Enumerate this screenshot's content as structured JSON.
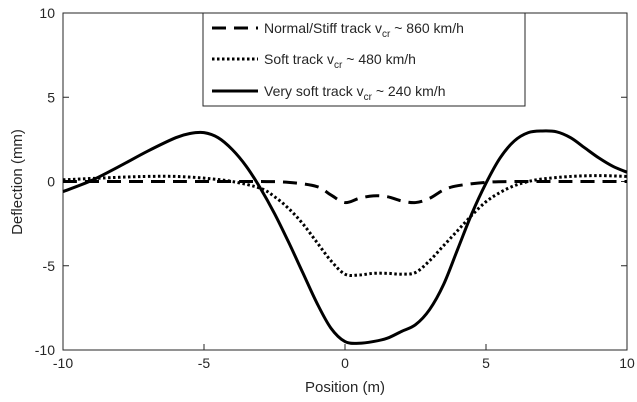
{
  "chart_data": {
    "type": "line",
    "title": "",
    "xlabel": "Position (m)",
    "ylabel": "Deflection (mm)",
    "xlim": [
      -10,
      10
    ],
    "ylim": [
      -10,
      10
    ],
    "xticks": [
      "-10",
      "-5",
      "0",
      "5",
      "10"
    ],
    "yticks": [
      "10",
      "5",
      "0",
      "-5",
      "-10"
    ],
    "xtick_values": [
      -10,
      -5,
      0,
      5,
      10
    ],
    "ytick_values": [
      10,
      5,
      0,
      -5,
      -10
    ],
    "grid": false,
    "legend_position": "top-center",
    "series": [
      {
        "legend_prefix": "Normal/Stiff track v",
        "legend_sub": "cr",
        "legend_suffix": " ~ 860 km/h",
        "style": "dashed",
        "color": "#000000",
        "x": [
          -10,
          -8,
          -6,
          -4,
          -3,
          -2,
          -1,
          -0.5,
          0,
          0.5,
          1,
          1.5,
          2,
          2.5,
          3,
          3.5,
          4,
          5,
          6,
          8,
          10
        ],
        "y": [
          0,
          0,
          0,
          0,
          0,
          -0.05,
          -0.3,
          -0.8,
          -1.25,
          -1.0,
          -0.85,
          -0.9,
          -1.15,
          -1.25,
          -1.0,
          -0.5,
          -0.25,
          -0.05,
          0,
          0,
          0
        ]
      },
      {
        "legend_prefix": "Soft track v",
        "legend_sub": "cr",
        "legend_suffix": " ~ 480 km/h",
        "style": "dotted",
        "color": "#000000",
        "x": [
          -10,
          -8,
          -7,
          -6,
          -5,
          -4,
          -3,
          -2.5,
          -2,
          -1.5,
          -1,
          -0.5,
          0,
          0.5,
          1,
          1.5,
          2,
          2.5,
          3,
          3.5,
          4,
          4.5,
          5,
          5.5,
          6,
          6.5,
          7,
          8,
          9,
          10
        ],
        "y": [
          0.1,
          0.25,
          0.3,
          0.3,
          0.2,
          0,
          -0.4,
          -0.9,
          -1.6,
          -2.5,
          -3.6,
          -4.7,
          -5.5,
          -5.55,
          -5.45,
          -5.45,
          -5.5,
          -5.4,
          -4.7,
          -3.8,
          -2.9,
          -2.0,
          -1.2,
          -0.65,
          -0.25,
          0,
          0.15,
          0.3,
          0.35,
          0.3
        ]
      },
      {
        "legend_prefix": "Very soft track v",
        "legend_sub": "cr",
        "legend_suffix": " ~ 240 km/h",
        "style": "solid",
        "color": "#000000",
        "x": [
          -10,
          -9,
          -8,
          -7,
          -6,
          -5.5,
          -5,
          -4.5,
          -4,
          -3.5,
          -3,
          -2.5,
          -2,
          -1.5,
          -1,
          -0.5,
          0,
          0.5,
          1,
          1.5,
          2,
          2.5,
          3,
          3.5,
          4,
          4.5,
          5,
          5.5,
          6,
          6.5,
          7,
          7.5,
          8,
          8.5,
          9,
          9.5,
          10
        ],
        "y": [
          -0.6,
          0.05,
          0.9,
          1.8,
          2.6,
          2.85,
          2.9,
          2.6,
          1.9,
          0.9,
          -0.4,
          -1.9,
          -3.6,
          -5.4,
          -7.2,
          -8.7,
          -9.5,
          -9.6,
          -9.5,
          -9.3,
          -8.9,
          -8.5,
          -7.6,
          -6.1,
          -4.0,
          -1.9,
          -0.1,
          1.4,
          2.4,
          2.9,
          3.0,
          2.95,
          2.6,
          2.0,
          1.4,
          0.9,
          0.55
        ]
      }
    ]
  }
}
